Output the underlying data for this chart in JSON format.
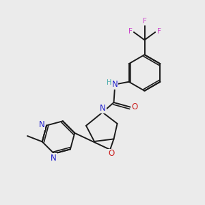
{
  "bg_color": "#ebebeb",
  "bond_color": "#1a1a1a",
  "N_color": "#2020cc",
  "O_color": "#cc2020",
  "F_color": "#cc44cc",
  "H_color": "#44aaaa",
  "figsize": [
    3.0,
    3.0
  ],
  "dpi": 100,
  "xlim": [
    0,
    10
  ],
  "ylim": [
    0,
    10
  ]
}
